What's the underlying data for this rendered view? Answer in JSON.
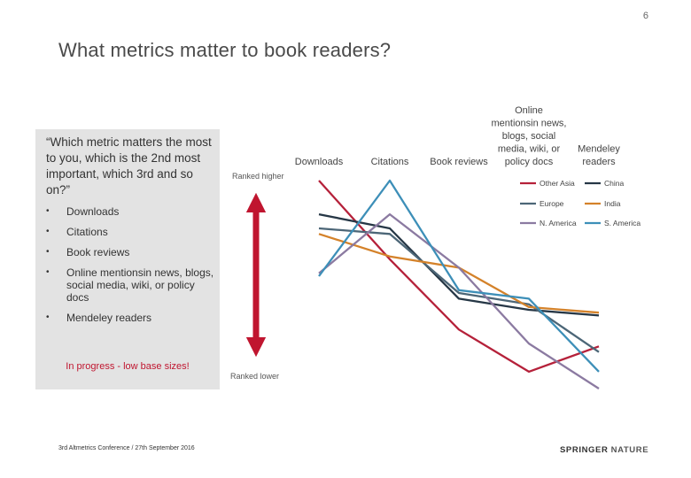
{
  "page_number": "6",
  "title": "What metrics matter to book readers?",
  "quote": "“Which metric matters the most to you, which is the 2nd most important, which 3rd and so on?”",
  "bullets": [
    "Downloads",
    "Citations",
    "Book reviews",
    "Online mentionsin news, blogs, social media, wiki, or policy docs",
    "Mendeley readers"
  ],
  "progress_note": "In progress - low base sizes!",
  "footer": "3rd Altmetrics Conference / 27th September 2016",
  "logo": {
    "part1": "SPRINGER",
    "part2": "NATURE"
  },
  "colors": {
    "arrow": "#c0152f"
  },
  "chart_data": {
    "type": "line",
    "categories": [
      "Downloads",
      "Citations",
      "Book reviews",
      "Online mentionsin news, blogs, social media, wiki, or policy docs",
      "Mendeley readers"
    ],
    "ylabel_top": "Ranked higher",
    "ylabel_bottom": "Ranked lower",
    "series": [
      {
        "name": "Other Asia",
        "color": "#b5213a",
        "values": [
          1.0,
          3.8,
          6.3,
          7.8,
          6.9
        ]
      },
      {
        "name": "China",
        "color": "#263746",
        "values": [
          2.2,
          2.7,
          5.2,
          5.6,
          5.8
        ]
      },
      {
        "name": "Europe",
        "color": "#4c6677",
        "values": [
          2.7,
          2.9,
          5.0,
          5.4,
          7.1
        ]
      },
      {
        "name": "India",
        "color": "#d4822a",
        "values": [
          2.9,
          3.7,
          4.1,
          5.5,
          5.7
        ]
      },
      {
        "name": "N. America",
        "color": "#8b7aa1",
        "values": [
          4.3,
          2.2,
          4.1,
          6.8,
          8.4
        ]
      },
      {
        "name": "S. America",
        "color": "#3d8fb8",
        "values": [
          4.4,
          1.0,
          4.9,
          5.2,
          7.8
        ]
      }
    ]
  }
}
